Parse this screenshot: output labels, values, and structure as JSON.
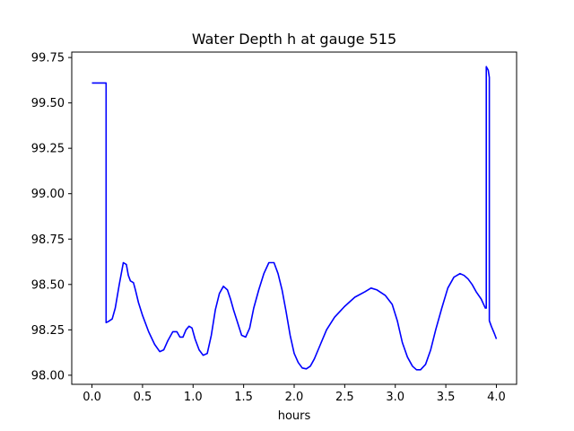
{
  "chart_data": {
    "type": "line",
    "title": "Water Depth h at gauge 515",
    "xlabel": "hours",
    "ylabel": "",
    "xlim": [
      -0.2,
      4.2
    ],
    "ylim": [
      97.95,
      99.78
    ],
    "xticks": [
      0.0,
      0.5,
      1.0,
      1.5,
      2.0,
      2.5,
      3.0,
      3.5,
      4.0
    ],
    "xtick_labels": [
      "0.0",
      "0.5",
      "1.0",
      "1.5",
      "2.0",
      "2.5",
      "3.0",
      "3.5",
      "4.0"
    ],
    "yticks": [
      98.0,
      98.25,
      98.5,
      98.75,
      99.0,
      99.25,
      99.5,
      99.75
    ],
    "ytick_labels": [
      "98.00",
      "98.25",
      "98.50",
      "98.75",
      "99.00",
      "99.25",
      "99.50",
      "99.75"
    ],
    "grid": false,
    "series": [
      {
        "color": "#0000ff",
        "x": [
          0.0,
          0.14,
          0.14,
          0.16,
          0.2,
          0.23,
          0.27,
          0.31,
          0.34,
          0.36,
          0.38,
          0.41,
          0.43,
          0.46,
          0.5,
          0.56,
          0.62,
          0.67,
          0.71,
          0.75,
          0.8,
          0.84,
          0.87,
          0.9,
          0.93,
          0.96,
          0.99,
          1.02,
          1.06,
          1.1,
          1.14,
          1.18,
          1.22,
          1.26,
          1.3,
          1.34,
          1.37,
          1.4,
          1.44,
          1.48,
          1.52,
          1.56,
          1.6,
          1.65,
          1.7,
          1.75,
          1.8,
          1.84,
          1.88,
          1.92,
          1.96,
          2.0,
          2.04,
          2.08,
          2.12,
          2.16,
          2.2,
          2.26,
          2.32,
          2.4,
          2.5,
          2.6,
          2.7,
          2.76,
          2.82,
          2.9,
          2.97,
          3.02,
          3.07,
          3.12,
          3.17,
          3.21,
          3.25,
          3.3,
          3.35,
          3.4,
          3.46,
          3.52,
          3.58,
          3.64,
          3.68,
          3.72,
          3.76,
          3.8,
          3.85,
          3.89,
          3.9,
          3.9,
          3.92,
          3.93,
          3.93,
          3.95,
          3.98,
          4.0
        ],
        "y": [
          99.61,
          99.61,
          98.29,
          98.295,
          98.31,
          98.37,
          98.5,
          98.62,
          98.61,
          98.55,
          98.52,
          98.51,
          98.47,
          98.4,
          98.33,
          98.24,
          98.17,
          98.13,
          98.14,
          98.19,
          98.24,
          98.24,
          98.21,
          98.21,
          98.25,
          98.27,
          98.26,
          98.2,
          98.14,
          98.11,
          98.12,
          98.22,
          98.36,
          98.45,
          98.49,
          98.47,
          98.42,
          98.36,
          98.29,
          98.22,
          98.21,
          98.26,
          98.37,
          98.47,
          98.56,
          98.62,
          98.62,
          98.56,
          98.47,
          98.35,
          98.22,
          98.12,
          98.07,
          98.04,
          98.035,
          98.05,
          98.09,
          98.17,
          98.25,
          98.32,
          98.38,
          98.43,
          98.46,
          98.48,
          98.47,
          98.44,
          98.39,
          98.3,
          98.18,
          98.1,
          98.05,
          98.03,
          98.03,
          98.06,
          98.14,
          98.25,
          98.37,
          98.48,
          98.54,
          98.56,
          98.55,
          98.53,
          98.5,
          98.46,
          98.42,
          98.37,
          98.37,
          99.7,
          99.68,
          99.64,
          98.3,
          98.27,
          98.23,
          98.2
        ]
      }
    ]
  }
}
